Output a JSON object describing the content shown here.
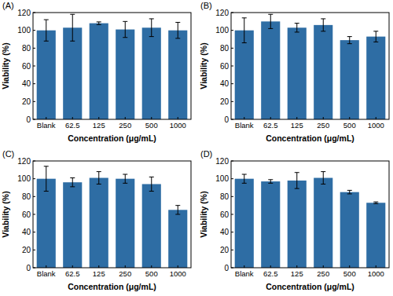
{
  "chart_data": [
    {
      "type": "bar",
      "title": "(A)",
      "x_label": "Concentration (μg/mL)",
      "y_label": "Viability (%)",
      "categories": [
        "Blank",
        "62.5",
        "125",
        "250",
        "500",
        "1000"
      ],
      "values": [
        100,
        103,
        108,
        101,
        103,
        100
      ],
      "errors": [
        12,
        15,
        1.5,
        9,
        10,
        9
      ],
      "color": "#2e6da4",
      "ylim": [
        0,
        120
      ],
      "yticks": [
        0,
        20,
        40,
        60,
        80,
        100,
        120
      ]
    },
    {
      "type": "bar",
      "title": "(B)",
      "x_label": "Concentration (μg/mL)",
      "y_label": "Viability (%)",
      "categories": [
        "Blank",
        "62.5",
        "125",
        "250",
        "500",
        "1000"
      ],
      "values": [
        100,
        110,
        103,
        106,
        89,
        93
      ],
      "errors": [
        14,
        8,
        5,
        7,
        4,
        6
      ],
      "color": "#2e6da4",
      "ylim": [
        0,
        120
      ],
      "yticks": [
        0,
        20,
        40,
        60,
        80,
        100,
        120
      ]
    },
    {
      "type": "bar",
      "title": "(C)",
      "x_label": "Concentration (μg/mL)",
      "y_label": "Viability (%)",
      "categories": [
        "Blank",
        "62.5",
        "125",
        "250",
        "500",
        "1000"
      ],
      "values": [
        100,
        96,
        101,
        100,
        94,
        65
      ],
      "errors": [
        14,
        5,
        7,
        5,
        8,
        5
      ],
      "color": "#2e6da4",
      "ylim": [
        0,
        120
      ],
      "yticks": [
        0,
        20,
        40,
        60,
        80,
        100,
        120
      ]
    },
    {
      "type": "bar",
      "title": "(D)",
      "x_label": "Concentration (μg/mL)",
      "y_label": "Viability (%)",
      "categories": [
        "Blank",
        "62.5",
        "125",
        "250",
        "500",
        "1000"
      ],
      "values": [
        100,
        97,
        98,
        101,
        85,
        73
      ],
      "errors": [
        5,
        2,
        9,
        7,
        2,
        1
      ],
      "color": "#2e6da4",
      "ylim": [
        0,
        120
      ],
      "yticks": [
        0,
        20,
        40,
        60,
        80,
        100,
        120
      ]
    }
  ]
}
